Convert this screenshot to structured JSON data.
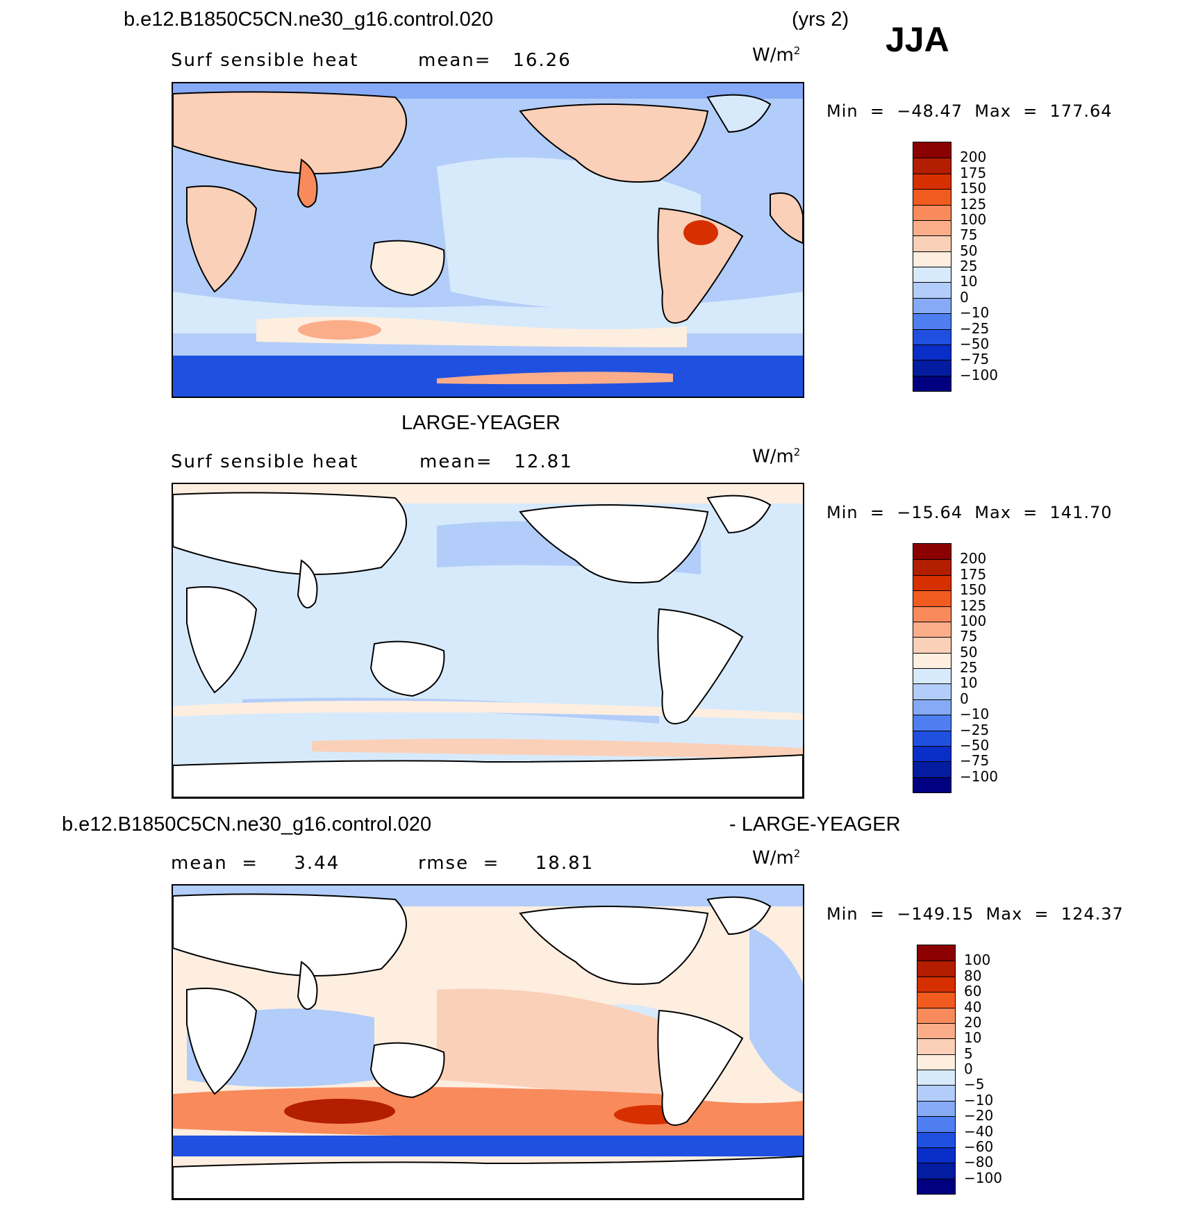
{
  "header": {
    "case_name": "b.e12.B1850C5CN.ne30_g16.control.020",
    "years": "(yrs 2)",
    "season": "JJA"
  },
  "panel1": {
    "variable": "Surf sensible heat",
    "mean_text": "mean=   16.26",
    "units": "W/m",
    "units_exp": "2",
    "min_max": "Min  =  −48.47  Max  =  177.64",
    "colorbar_labels": [
      "200",
      "175",
      "150",
      "125",
      "100",
      "75",
      "50",
      "25",
      "10",
      "0",
      "−10",
      "−25",
      "−50",
      "−75",
      "−100"
    ]
  },
  "panel2": {
    "title": "LARGE-YEAGER",
    "variable": "Surf sensible heat",
    "mean_text": "mean=   12.81",
    "units": "W/m",
    "units_exp": "2",
    "min_max": "Min  =  −15.64  Max  =  141.70",
    "colorbar_labels": [
      "200",
      "175",
      "150",
      "125",
      "100",
      "75",
      "50",
      "25",
      "10",
      "0",
      "−10",
      "−25",
      "−50",
      "−75",
      "−100"
    ]
  },
  "panel3": {
    "title_left": "b.e12.B1850C5CN.ne30_g16.control.020",
    "title_right": "- LARGE-YEAGER",
    "mean_text": "mean  =     3.44",
    "rmse_text": "rmse  =     18.81",
    "units": "W/m",
    "units_exp": "2",
    "min_max": "Min  =  −149.15  Max  =  124.37",
    "colorbar_labels": [
      "100",
      "80",
      "60",
      "40",
      "20",
      "10",
      "5",
      "0",
      "−5",
      "−10",
      "−20",
      "−40",
      "−60",
      "−80",
      "−100"
    ]
  },
  "colors": {
    "scale": [
      "#8b0000",
      "#b31d00",
      "#d73000",
      "#f25b20",
      "#f98a5b",
      "#fbad8a",
      "#fbd0b8",
      "#fdeee0",
      "#d7eafb",
      "#b2cdf9",
      "#86aaf5",
      "#4e7ef0",
      "#2050e0",
      "#0a2ec8",
      "#041ca0",
      "#000080"
    ]
  },
  "chart_data": [
    {
      "type": "heatmap",
      "title": "Surf sensible heat",
      "case": "b.e12.B1850C5CN.ne30_g16.control.020",
      "season": "JJA",
      "units": "W/m2",
      "mean": 16.26,
      "min": -48.47,
      "max": 177.64,
      "contour_levels": [
        -100,
        -75,
        -50,
        -25,
        -10,
        0,
        10,
        25,
        50,
        75,
        100,
        125,
        150,
        175,
        200
      ]
    },
    {
      "type": "heatmap",
      "title": "Surf sensible heat",
      "case": "LARGE-YEAGER",
      "season": "JJA",
      "units": "W/m2",
      "mean": 12.81,
      "min": -15.64,
      "max": 141.7,
      "contour_levels": [
        -100,
        -75,
        -50,
        -25,
        -10,
        0,
        10,
        25,
        50,
        75,
        100,
        125,
        150,
        175,
        200
      ]
    },
    {
      "type": "heatmap",
      "title": "b.e12.B1850C5CN.ne30_g16.control.020 - LARGE-YEAGER",
      "season": "JJA",
      "units": "W/m2",
      "mean": 3.44,
      "rmse": 18.81,
      "min": -149.15,
      "max": 124.37,
      "contour_levels": [
        -100,
        -80,
        -60,
        -40,
        -20,
        -10,
        -5,
        0,
        5,
        10,
        20,
        40,
        60,
        80,
        100
      ]
    }
  ]
}
